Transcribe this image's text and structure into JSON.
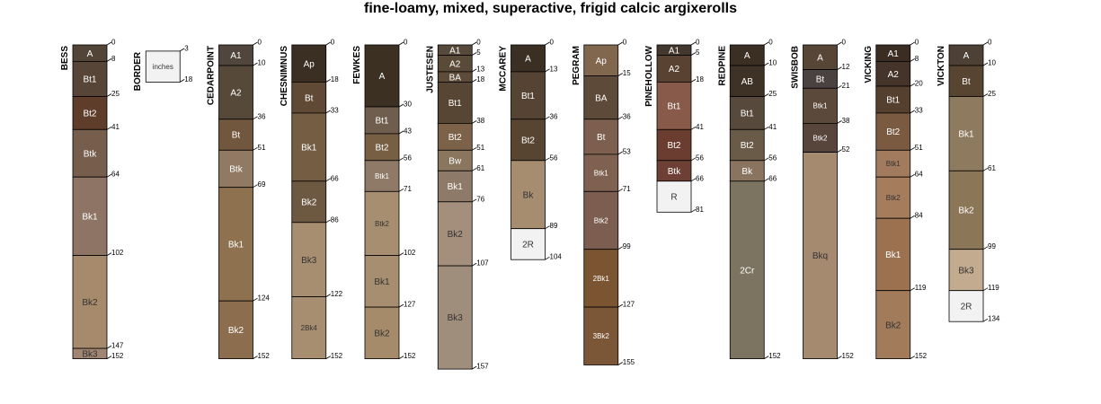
{
  "chart_data": {
    "type": "soil-profile-diagram",
    "title": "fine-loamy, mixed, superactive, frigid calcic argixerolls",
    "depth_unit": "inches",
    "depth_max": 157,
    "profiles": [
      {
        "name": "BESS",
        "horizons": [
          {
            "name": "A",
            "top": 0,
            "bottom": 8,
            "color": "#524537"
          },
          {
            "name": "Bt1",
            "top": 8,
            "bottom": 25,
            "color": "#574637"
          },
          {
            "name": "Bt2",
            "top": 25,
            "bottom": 41,
            "color": "#5e3d2a"
          },
          {
            "name": "Btk",
            "top": 41,
            "bottom": 64,
            "color": "#765e4c"
          },
          {
            "name": "Bk1",
            "top": 64,
            "bottom": 102,
            "color": "#8d7464"
          },
          {
            "name": "Bk2",
            "top": 102,
            "bottom": 147,
            "color": "#a58a6c"
          },
          {
            "name": "Bk3",
            "top": 147,
            "bottom": 152,
            "color": "#a08672"
          }
        ]
      },
      {
        "name": "BORDER",
        "horizons": [
          {
            "name": "inches",
            "top": 3,
            "bottom": 18,
            "color": "#f2f2f2"
          }
        ]
      },
      {
        "name": "CEDARPOINT",
        "horizons": [
          {
            "name": "A1",
            "top": 0,
            "bottom": 10,
            "color": "#51463d"
          },
          {
            "name": "A2",
            "top": 10,
            "bottom": 36,
            "color": "#574939"
          },
          {
            "name": "Bt",
            "top": 36,
            "bottom": 51,
            "color": "#71573d"
          },
          {
            "name": "Btk",
            "top": 51,
            "bottom": 69,
            "color": "#917a64"
          },
          {
            "name": "Bk1",
            "top": 69,
            "bottom": 124,
            "color": "#8e714f"
          },
          {
            "name": "Bk2",
            "top": 124,
            "bottom": 152,
            "color": "#8c6e4e"
          }
        ]
      },
      {
        "name": "CHESNIMNUS",
        "horizons": [
          {
            "name": "Ap",
            "top": 0,
            "bottom": 18,
            "color": "#3b2e22"
          },
          {
            "name": "Bt",
            "top": 18,
            "bottom": 33,
            "color": "#604a35"
          },
          {
            "name": "Bk1",
            "top": 33,
            "bottom": 66,
            "color": "#755d44"
          },
          {
            "name": "Bk2",
            "top": 66,
            "bottom": 86,
            "color": "#6d5842"
          },
          {
            "name": "Bk3",
            "top": 86,
            "bottom": 122,
            "color": "#a88e70"
          },
          {
            "name": "2Bk4",
            "top": 122,
            "bottom": 152,
            "color": "#a88e70"
          }
        ]
      },
      {
        "name": "FEWKES",
        "horizons": [
          {
            "name": "A",
            "top": 0,
            "bottom": 30,
            "color": "#3c3023"
          },
          {
            "name": "Bt1",
            "top": 30,
            "bottom": 43,
            "color": "#6f5e4e"
          },
          {
            "name": "Bt2",
            "top": 43,
            "bottom": 56,
            "color": "#775f44"
          },
          {
            "name": "Btk1",
            "top": 56,
            "bottom": 71,
            "color": "#8e7a66"
          },
          {
            "name": "Btk2",
            "top": 71,
            "bottom": 102,
            "color": "#a88e70"
          },
          {
            "name": "Bk1",
            "top": 102,
            "bottom": 127,
            "color": "#a88e70"
          },
          {
            "name": "Bk2",
            "top": 127,
            "bottom": 152,
            "color": "#a68b6b"
          }
        ]
      },
      {
        "name": "JUSTESEN",
        "horizons": [
          {
            "name": "A1",
            "top": 0,
            "bottom": 5,
            "color": "#574a3b"
          },
          {
            "name": "A2",
            "top": 5,
            "bottom": 13,
            "color": "#5a4a38"
          },
          {
            "name": "BA",
            "top": 13,
            "bottom": 18,
            "color": "#5d4c3a"
          },
          {
            "name": "Bt1",
            "top": 18,
            "bottom": 38,
            "color": "#574633"
          },
          {
            "name": "Bt2",
            "top": 38,
            "bottom": 51,
            "color": "#7b6249"
          },
          {
            "name": "Bw",
            "top": 51,
            "bottom": 61,
            "color": "#8a765e"
          },
          {
            "name": "Bk1",
            "top": 61,
            "bottom": 76,
            "color": "#8e7a68"
          },
          {
            "name": "Bk2",
            "top": 76,
            "bottom": 107,
            "color": "#a48e7c"
          },
          {
            "name": "Bk3",
            "top": 107,
            "bottom": 157,
            "color": "#a08e7c"
          }
        ]
      },
      {
        "name": "MCCAREY",
        "horizons": [
          {
            "name": "A",
            "top": 0,
            "bottom": 13,
            "color": "#3b2e23"
          },
          {
            "name": "Bt1",
            "top": 13,
            "bottom": 36,
            "color": "#554434"
          },
          {
            "name": "Bt2",
            "top": 36,
            "bottom": 56,
            "color": "#574532"
          },
          {
            "name": "Bk",
            "top": 56,
            "bottom": 89,
            "color": "#a68d70"
          },
          {
            "name": "2R",
            "top": 89,
            "bottom": 104,
            "color": "#f2f2f2"
          }
        ]
      },
      {
        "name": "PEGRAM",
        "horizons": [
          {
            "name": "Ap",
            "top": 0,
            "bottom": 15,
            "color": "#81674d"
          },
          {
            "name": "BA",
            "top": 15,
            "bottom": 36,
            "color": "#5e4a39"
          },
          {
            "name": "Bt",
            "top": 36,
            "bottom": 53,
            "color": "#7d5f4f"
          },
          {
            "name": "Btk1",
            "top": 53,
            "bottom": 71,
            "color": "#7f6151"
          },
          {
            "name": "Btk2",
            "top": 71,
            "bottom": 99,
            "color": "#7b5e50"
          },
          {
            "name": "2Bk1",
            "top": 99,
            "bottom": 127,
            "color": "#7b5532"
          },
          {
            "name": "3Bk2",
            "top": 127,
            "bottom": 155,
            "color": "#7c5737"
          }
        ]
      },
      {
        "name": "PINEHOLLOW",
        "horizons": [
          {
            "name": "A1",
            "top": 0,
            "bottom": 5,
            "color": "#43372e"
          },
          {
            "name": "A2",
            "top": 5,
            "bottom": 18,
            "color": "#5a4233"
          },
          {
            "name": "Bt1",
            "top": 18,
            "bottom": 41,
            "color": "#875a4a"
          },
          {
            "name": "Bt2",
            "top": 41,
            "bottom": 56,
            "color": "#6a3d30"
          },
          {
            "name": "Btk",
            "top": 56,
            "bottom": 66,
            "color": "#6e4035"
          },
          {
            "name": "R",
            "top": 66,
            "bottom": 81,
            "color": "#f2f2f2"
          }
        ]
      },
      {
        "name": "REDPINE",
        "horizons": [
          {
            "name": "A",
            "top": 0,
            "bottom": 10,
            "color": "#3b2e23"
          },
          {
            "name": "AB",
            "top": 10,
            "bottom": 25,
            "color": "#3e3125"
          },
          {
            "name": "Bt1",
            "top": 25,
            "bottom": 41,
            "color": "#574a3c"
          },
          {
            "name": "Bt2",
            "top": 41,
            "bottom": 56,
            "color": "#6a5a48"
          },
          {
            "name": "Bk",
            "top": 56,
            "bottom": 66,
            "color": "#8a7460"
          },
          {
            "name": "2Cr",
            "top": 66,
            "bottom": 152,
            "color": "#7d7361"
          }
        ]
      },
      {
        "name": "SWISBOB",
        "horizons": [
          {
            "name": "A",
            "top": 0,
            "bottom": 12,
            "color": "#574535"
          },
          {
            "name": "Bt",
            "top": 12,
            "bottom": 21,
            "color": "#4a4240"
          },
          {
            "name": "Btk1",
            "top": 21,
            "bottom": 38,
            "color": "#5b4a3b"
          },
          {
            "name": "Btk2",
            "top": 38,
            "bottom": 52,
            "color": "#57443b"
          },
          {
            "name": "Bkq",
            "top": 52,
            "bottom": 152,
            "color": "#a68a70"
          }
        ]
      },
      {
        "name": "VICKING",
        "horizons": [
          {
            "name": "A1",
            "top": 0,
            "bottom": 8,
            "color": "#3b2d22"
          },
          {
            "name": "A2",
            "top": 8,
            "bottom": 20,
            "color": "#44342a"
          },
          {
            "name": "Bt1",
            "top": 20,
            "bottom": 33,
            "color": "#553f2f"
          },
          {
            "name": "Bt2",
            "top": 33,
            "bottom": 51,
            "color": "#7a5a40"
          },
          {
            "name": "Btk1",
            "top": 51,
            "bottom": 64,
            "color": "#a27b5e"
          },
          {
            "name": "Btk2",
            "top": 64,
            "bottom": 84,
            "color": "#a57d5d"
          },
          {
            "name": "Bk1",
            "top": 84,
            "bottom": 119,
            "color": "#9b7150"
          },
          {
            "name": "Bk2",
            "top": 119,
            "bottom": 152,
            "color": "#a27b5b"
          }
        ]
      },
      {
        "name": "VICKTON",
        "horizons": [
          {
            "name": "A",
            "top": 0,
            "bottom": 10,
            "color": "#4d4034"
          },
          {
            "name": "Bt",
            "top": 10,
            "bottom": 25,
            "color": "#574532"
          },
          {
            "name": "Bk1",
            "top": 25,
            "bottom": 61,
            "color": "#8e7a5e"
          },
          {
            "name": "Bk2",
            "top": 61,
            "bottom": 99,
            "color": "#8c7658"
          },
          {
            "name": "Bk3",
            "top": 99,
            "bottom": 119,
            "color": "#c2ab8e"
          },
          {
            "name": "2R",
            "top": 119,
            "bottom": 134,
            "color": "#f2f2f2"
          }
        ]
      }
    ]
  }
}
